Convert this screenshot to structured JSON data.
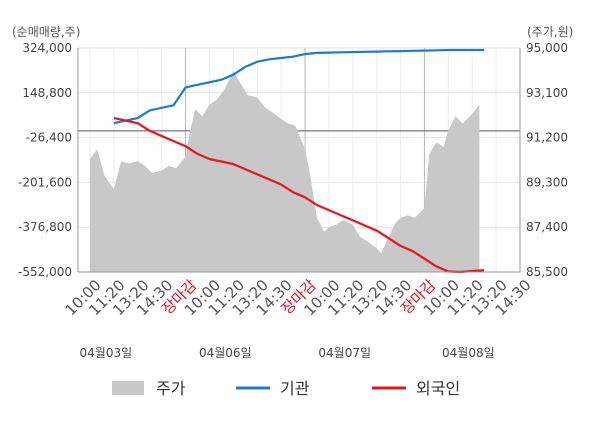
{
  "chart_data": {
    "type": "line",
    "left_axis_unit": "(순매매량,주)",
    "right_axis_unit": "(주가,원)",
    "left_ticks": [
      "324,000",
      "148,800",
      "-26,400",
      "-201,600",
      "-376,800",
      "-552,000"
    ],
    "right_ticks": [
      "95,000",
      "93,100",
      "91,200",
      "89,300",
      "87,400",
      "85,500"
    ],
    "left_range": [
      -552000,
      324000
    ],
    "right_range": [
      85500,
      95000
    ],
    "x_ticks": [
      {
        "label": "10:00",
        "red": false
      },
      {
        "label": "11:20",
        "red": false
      },
      {
        "label": "13:20",
        "red": false
      },
      {
        "label": "14:30",
        "red": false
      },
      {
        "label": "장마감",
        "red": true
      },
      {
        "label": "10:00",
        "red": false
      },
      {
        "label": "11:20",
        "red": false
      },
      {
        "label": "13:20",
        "red": false
      },
      {
        "label": "14:30",
        "red": false
      },
      {
        "label": "장마감",
        "red": true
      },
      {
        "label": "10:00",
        "red": false
      },
      {
        "label": "11:20",
        "red": false
      },
      {
        "label": "13:20",
        "red": false
      },
      {
        "label": "14:30",
        "red": false
      },
      {
        "label": "장마감",
        "red": true
      },
      {
        "label": "10:00",
        "red": false
      },
      {
        "label": "11:20",
        "red": false
      },
      {
        "label": "13:20",
        "red": false
      },
      {
        "label": "14:30",
        "red": false
      }
    ],
    "dates": [
      "04월03일",
      "04월06일",
      "04월07일",
      "04월08일"
    ],
    "day_dividers": [
      4,
      9,
      14
    ],
    "series": [
      {
        "name": "주가",
        "kind": "area",
        "color": "#c8c8c8",
        "axis": "right",
        "x": [
          0,
          0.3,
          0.6,
          1,
          1.3,
          1.6,
          2,
          2.3,
          2.6,
          3,
          3.3,
          3.6,
          4,
          4.1,
          4.4,
          4.7,
          5,
          5.3,
          5.6,
          6,
          6.3,
          6.6,
          7,
          7.3,
          7.6,
          8,
          8.3,
          8.6,
          9,
          9.2,
          9.5,
          9.8,
          10,
          10.3,
          10.6,
          11,
          11.3,
          11.6,
          12,
          12.2,
          12.5,
          12.8,
          13,
          13.3,
          13.6,
          14,
          14.2,
          14.5,
          14.8,
          15,
          15.3,
          15.6,
          16,
          16.3
        ],
        "values": [
          90300,
          90700,
          89600,
          89000,
          90200,
          90100,
          90200,
          90000,
          89700,
          89800,
          90000,
          89900,
          90400,
          91000,
          92400,
          92100,
          92600,
          92800,
          93200,
          94000,
          93500,
          93000,
          92900,
          92500,
          92300,
          92000,
          91800,
          91700,
          90700,
          89700,
          87800,
          87200,
          87400,
          87500,
          87700,
          87500,
          87000,
          86800,
          86500,
          86300,
          87000,
          87600,
          87800,
          87900,
          87800,
          88200,
          90500,
          91000,
          90800,
          91500,
          92100,
          91800,
          92200,
          92600
        ]
      },
      {
        "name": "기관",
        "kind": "line",
        "color": "#1a7ccc",
        "axis": "left",
        "x": [
          1,
          1.5,
          2,
          2.5,
          3,
          3.5,
          4,
          4.5,
          5,
          5.5,
          6,
          6.5,
          7,
          7.5,
          8,
          8.5,
          9,
          9.5,
          10,
          10.5,
          11,
          11.5,
          12,
          12.5,
          13,
          13.5,
          14,
          14.5,
          15,
          15.5,
          16,
          16.5
        ],
        "values": [
          30000,
          40000,
          50000,
          80000,
          90000,
          100000,
          170000,
          180000,
          190000,
          200000,
          220000,
          250000,
          270000,
          280000,
          285000,
          290000,
          300000,
          305000,
          306000,
          307000,
          308000,
          309000,
          310000,
          311000,
          312000,
          313000,
          314000,
          315000,
          316000,
          316000,
          316000,
          316000
        ]
      },
      {
        "name": "외국인",
        "kind": "line",
        "color": "#e8141b",
        "axis": "left",
        "x": [
          1,
          1.5,
          2,
          2.5,
          3,
          3.5,
          4,
          4.5,
          5,
          5.5,
          6,
          6.5,
          7,
          7.5,
          8,
          8.5,
          9,
          9.5,
          10,
          10.5,
          11,
          11.5,
          12,
          12.5,
          13,
          13.5,
          14,
          14.5,
          15,
          15.5,
          16,
          16.5
        ],
        "values": [
          50000,
          40000,
          30000,
          0,
          -20000,
          -40000,
          -60000,
          -90000,
          -110000,
          -120000,
          -130000,
          -150000,
          -170000,
          -190000,
          -210000,
          -240000,
          -260000,
          -290000,
          -310000,
          -330000,
          -350000,
          -370000,
          -390000,
          -420000,
          -450000,
          -470000,
          -500000,
          -530000,
          -550000,
          -552000,
          -548000,
          -545000
        ]
      }
    ],
    "legend": [
      {
        "label": "주가",
        "swatch": "area",
        "color": "#c8c8c8"
      },
      {
        "label": "기관",
        "swatch": "line",
        "color": "#1a7ccc"
      },
      {
        "label": "외국인",
        "swatch": "line",
        "color": "#e8141b"
      }
    ]
  }
}
